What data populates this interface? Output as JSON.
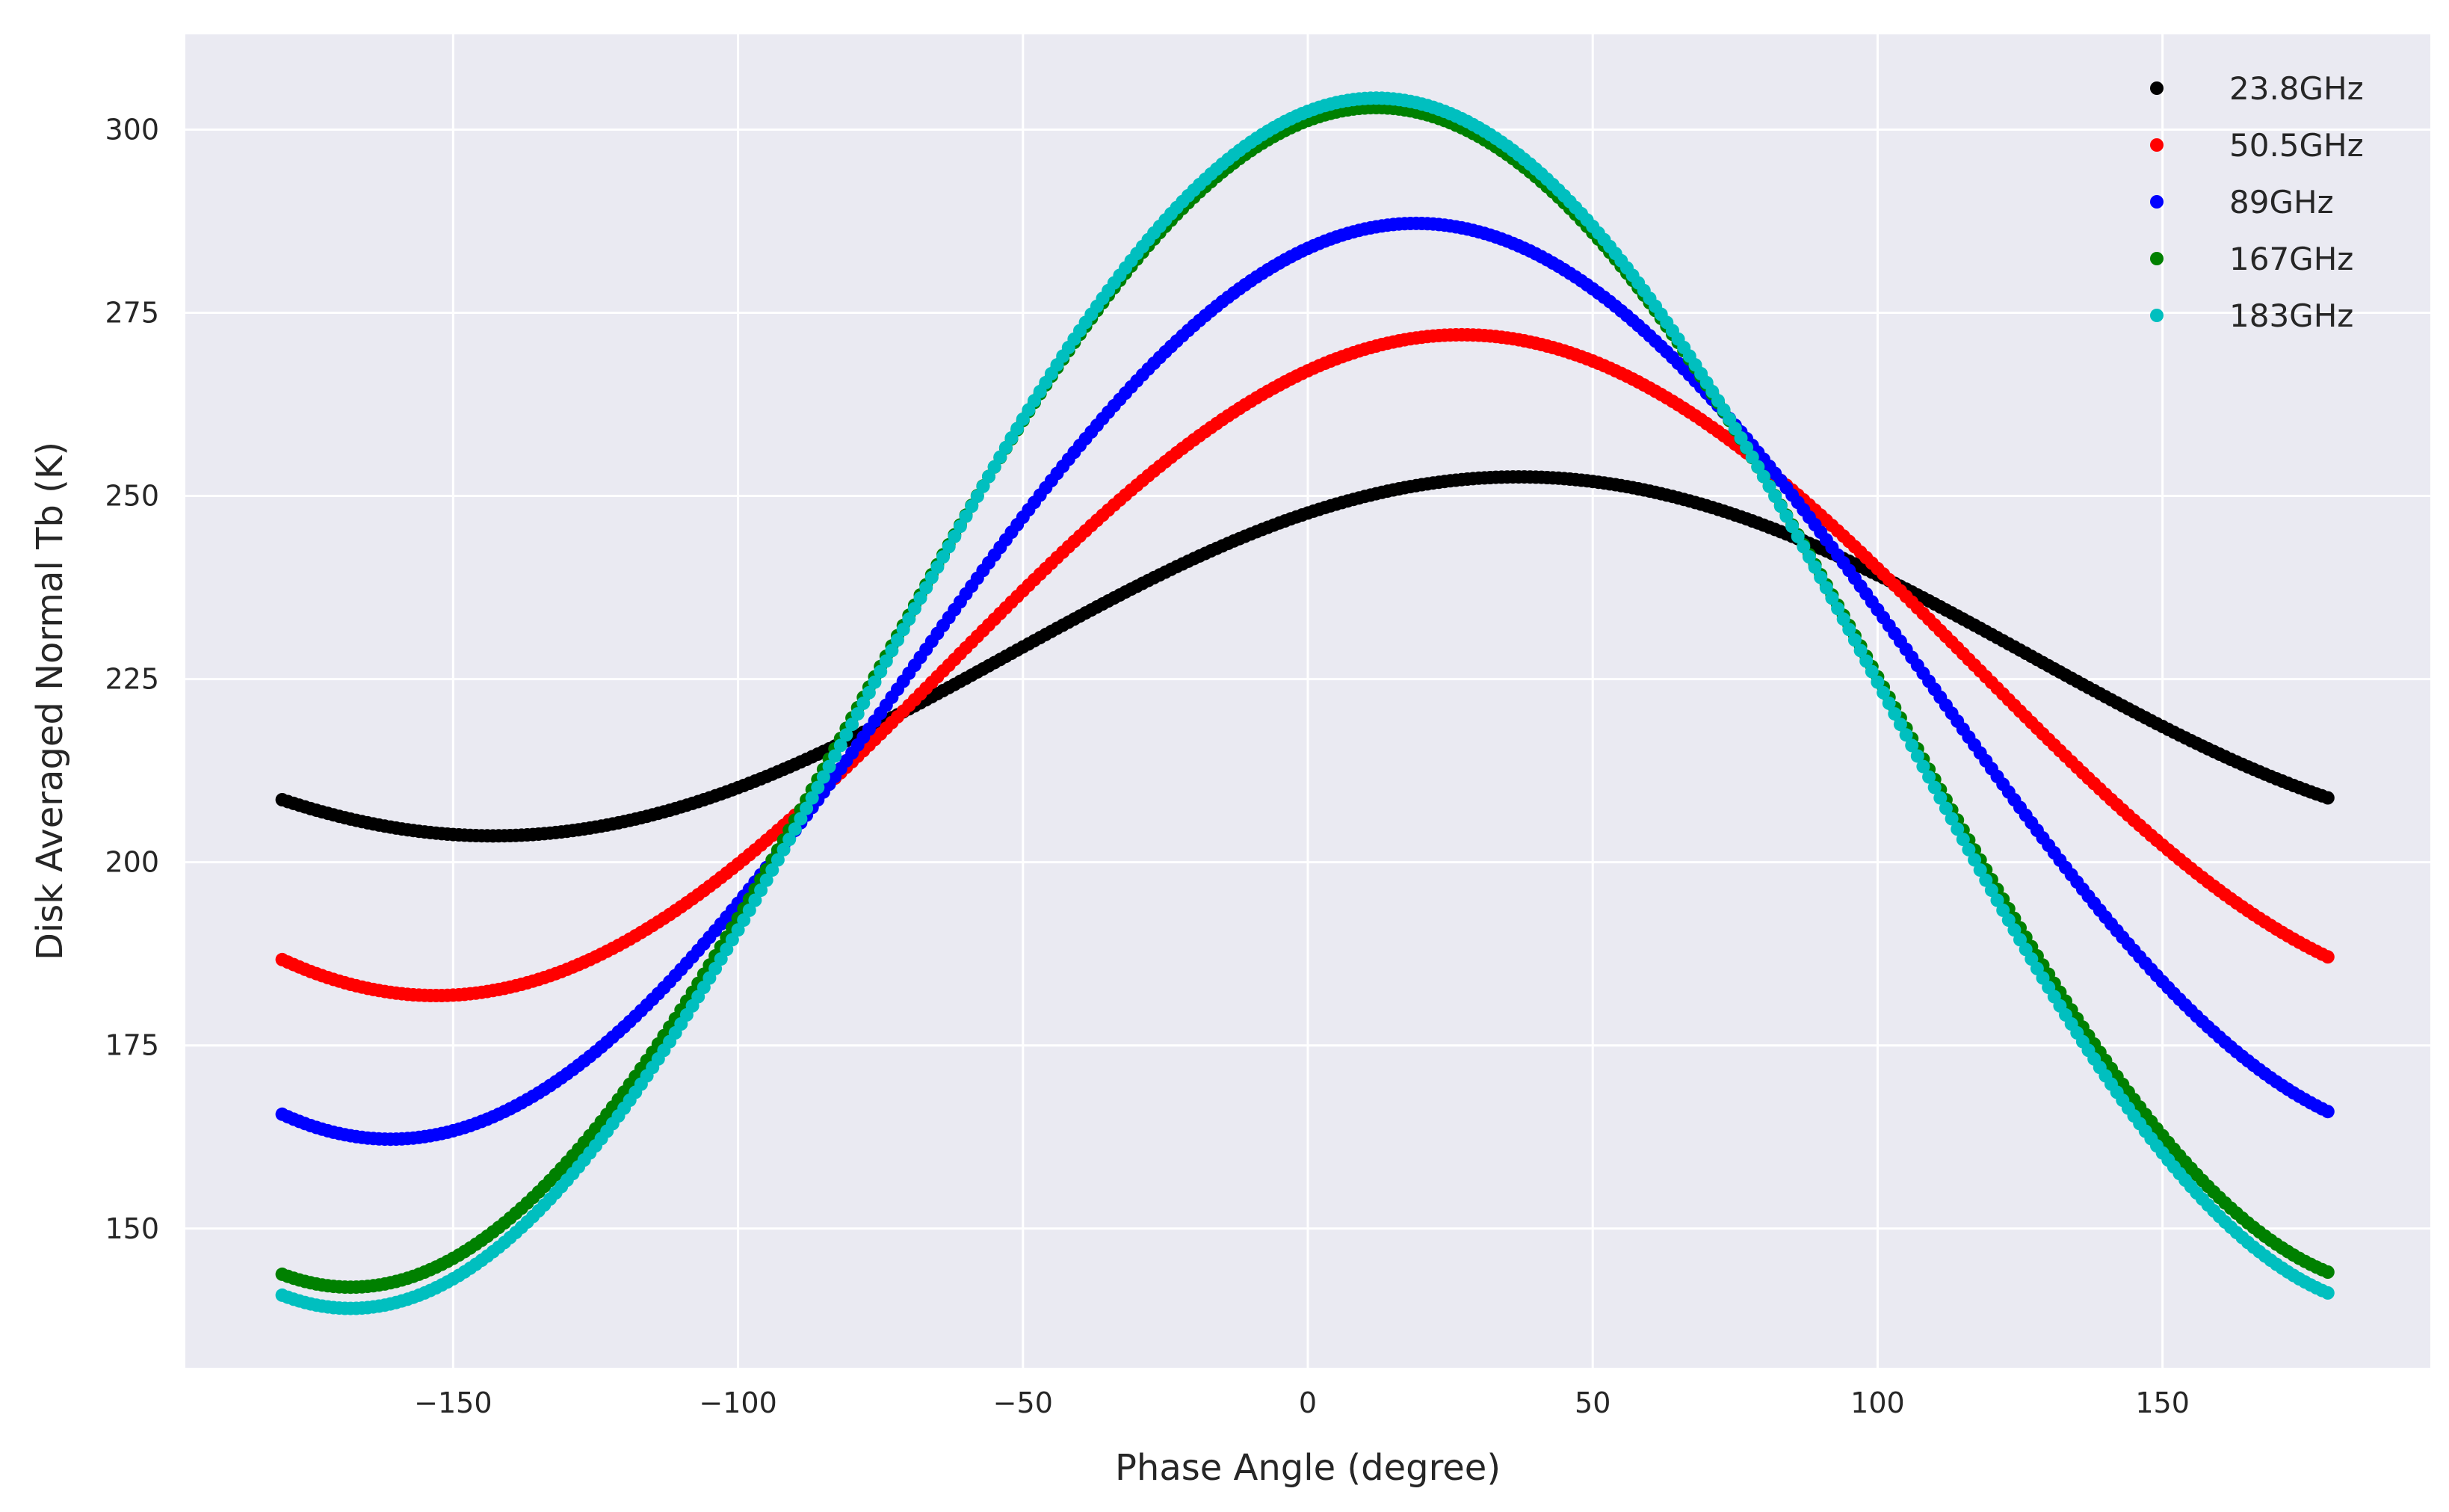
{
  "chart_data": {
    "type": "scatter",
    "title": "",
    "xlabel": "Phase Angle (degree)",
    "ylabel": "Disk Averaged Normal Tb (K)",
    "xlim": [
      -197,
      197
    ],
    "ylim": [
      131,
      313
    ],
    "xticks": [
      -150,
      -100,
      -50,
      0,
      50,
      100,
      150
    ],
    "yticks": [
      150,
      175,
      200,
      225,
      250,
      275,
      300
    ],
    "grid": true,
    "background": "#eaeaf2",
    "legend_position": "top-right",
    "x_range": [
      -180,
      179
    ],
    "x_step": 1,
    "series": [
      {
        "name": "23.8GHz",
        "color": "#000000",
        "mean": 228.1,
        "amplitude": 24.5,
        "peak_phase": 37
      },
      {
        "name": "50.5GHz",
        "color": "#ff0000",
        "mean": 226.9,
        "amplitude": 45.1,
        "peak_phase": 27
      },
      {
        "name": "89GHz",
        "color": "#0000ff",
        "mean": 224.7,
        "amplitude": 62.5,
        "peak_phase": 19
      },
      {
        "name": "167GHz",
        "color": "#008000",
        "mean": 222.5,
        "amplitude": 80.5,
        "peak_phase": 12
      },
      {
        "name": "183GHz",
        "color": "#00bfbf",
        "mean": 221.7,
        "amplitude": 82.6,
        "peak_phase": 12
      }
    ]
  }
}
